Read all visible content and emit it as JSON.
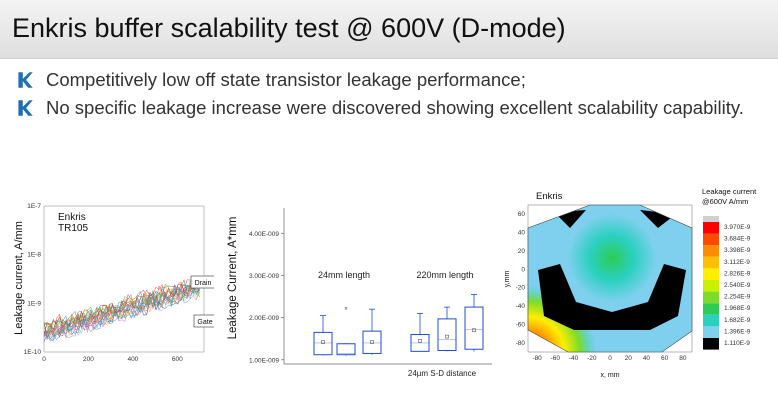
{
  "slide": {
    "title": "Enkris buffer scalability test @ 600V (D-mode)",
    "bullets": [
      "Competitively low off state transistor leakage performance;",
      "No specific leakage increase were discovered showing excellent scalability capability."
    ],
    "accent_color": "#1f6fb2"
  },
  "chart_data": [
    {
      "type": "line",
      "title": "Enkris",
      "subtitle": "TR105",
      "ylabel": "Leakage current, A/mm",
      "xlabel": "",
      "x_ticks": [
        "0",
        "200",
        "400",
        "600"
      ],
      "y_ticks": [
        "1E-7",
        "1E-8",
        "1E-9",
        "1E-10"
      ],
      "y_scale": "log",
      "xlim": [
        0,
        720
      ],
      "ylim": [
        1e-10,
        1e-07
      ],
      "annotations": [
        "Drain",
        "Gate"
      ]
    },
    {
      "type": "box",
      "ylabel": "Leakage Current, A*mm",
      "y_ticks": [
        "4.00E-009",
        "3.00E-009",
        "2.00E-009",
        "1.00E-009"
      ],
      "ylim": [
        9e-10,
        4.6e-09
      ],
      "xlabel": "24µm S-D distance",
      "groups": [
        {
          "label": "24mm length",
          "boxes": [
            {
              "whisker_low": 1.1e-09,
              "q1": 1.12e-09,
              "median": 1.4e-09,
              "q3": 1.65e-09,
              "whisker_high": 2.05e-09,
              "mean": 1.42e-09
            },
            {
              "whisker_low": 1.1e-09,
              "q1": 1.12e-09,
              "median": 1.15e-09,
              "q3": 1.38e-09,
              "whisker_high": 1.38e-09,
              "mean": null,
              "outlier": 2.22e-09
            },
            {
              "whisker_low": 1.12e-09,
              "q1": 1.15e-09,
              "median": 1.4e-09,
              "q3": 1.68e-09,
              "whisker_high": 2.2e-09,
              "mean": 1.42e-09
            }
          ]
        },
        {
          "label": "220mm length",
          "boxes": [
            {
              "whisker_low": 1.2e-09,
              "q1": 1.2e-09,
              "median": 1.4e-09,
              "q3": 1.6e-09,
              "whisker_high": 2.1e-09,
              "mean": 1.45e-09
            },
            {
              "whisker_low": 1.2e-09,
              "q1": 1.22e-09,
              "median": 1.48e-09,
              "q3": 1.97e-09,
              "whisker_high": 2.25e-09,
              "mean": 1.55e-09
            },
            {
              "whisker_low": 1.2e-09,
              "q1": 1.25e-09,
              "median": 1.72e-09,
              "q3": 2.25e-09,
              "whisker_high": 2.55e-09,
              "mean": 1.7e-09
            }
          ]
        }
      ]
    },
    {
      "type": "heatmap",
      "title": "Enkris",
      "xlabel": "x, mm",
      "ylabel": "y,mm",
      "x_ticks": [
        "-80",
        "-60",
        "-40",
        "-20",
        "0",
        "20",
        "40",
        "60",
        "80"
      ],
      "y_ticks": [
        "60",
        "40",
        "20",
        "0",
        "-20",
        "-40",
        "-60",
        "-80"
      ],
      "colorbar_title": "Leakage current",
      "colorbar_subtitle": "@600V A/mm",
      "colorbar_levels": [
        "3.970E-9",
        "3.684E-9",
        "3.398E-9",
        "3.112E-9",
        "2.826E-9",
        "2.540E-9",
        "2.254E-9",
        "1.968E-9",
        "1.682E-9",
        "1.396E-9",
        "1.110E-9"
      ],
      "colorbar_colors": [
        "#ff0000",
        "#ff4a00",
        "#ff8c00",
        "#ffc000",
        "#ffee00",
        "#c8f000",
        "#7ddc2a",
        "#2ecc55",
        "#2ad0c0",
        "#7fd0ee",
        "#000000"
      ]
    }
  ]
}
